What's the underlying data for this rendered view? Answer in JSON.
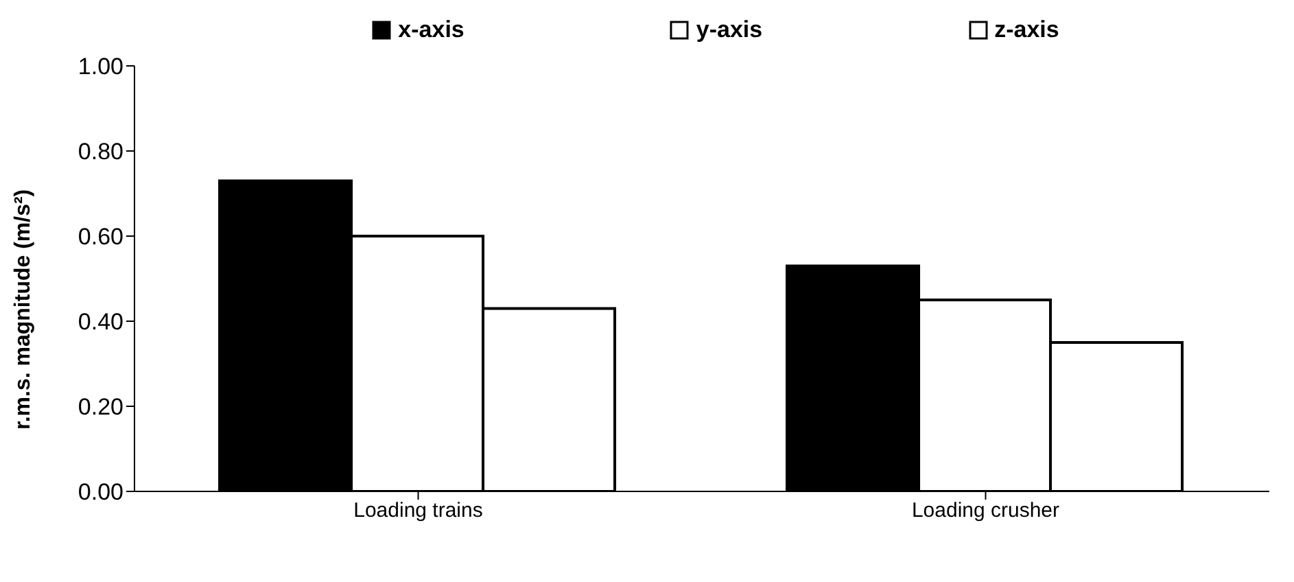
{
  "chart_data": {
    "type": "bar",
    "ylabel": "r.m.s. magnitude (m/s²)",
    "categories": [
      "Loading trains",
      "Loading crusher"
    ],
    "series": [
      {
        "name": "x-axis",
        "color": "#000000",
        "values": [
          0.73,
          0.53
        ]
      },
      {
        "name": "y-axis",
        "color": "#ffffff",
        "values": [
          0.6,
          0.45
        ]
      },
      {
        "name": "z-axis",
        "color": "#ffffff",
        "values": [
          0.43,
          0.35
        ]
      }
    ],
    "ylim": [
      0,
      1
    ],
    "yticks": [
      {
        "value": 0,
        "label": "0.00"
      },
      {
        "value": 0.2,
        "label": "0.20"
      },
      {
        "value": 0.4,
        "label": "0.40"
      },
      {
        "value": 0.6,
        "label": "0.60"
      },
      {
        "value": 0.8,
        "label": "0.80"
      },
      {
        "value": 1,
        "label": "1.00"
      }
    ],
    "grid": false,
    "legend": "top"
  }
}
